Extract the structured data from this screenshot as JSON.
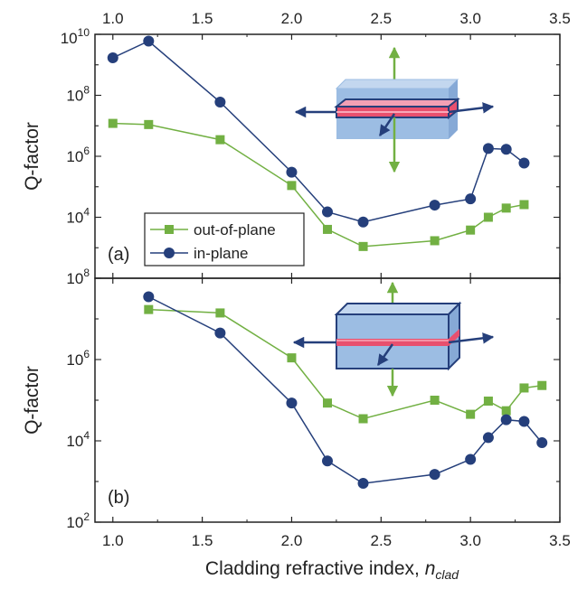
{
  "chart_data": [
    {
      "type": "line",
      "panel_label": "(a)",
      "ylabel": "Q-factor",
      "yscale": "log",
      "ylim_exp": [
        2,
        10
      ],
      "y_tick_exponents": [
        8,
        6,
        4
      ],
      "y_tick_top_exponent": 10,
      "bottom_edge_label_exponent": 8,
      "x": [
        1.0,
        1.2,
        1.6,
        2.0,
        2.2,
        2.4,
        2.8,
        3.0,
        3.1,
        3.2,
        3.3
      ],
      "series": [
        {
          "name": "out-of-plane",
          "color": "#72b043",
          "marker": "square",
          "values": [
            12000000,
            11000000,
            3500000,
            110000,
            4000,
            1100,
            1700,
            3800,
            10000,
            20000,
            26000
          ]
        },
        {
          "name": "in-plane",
          "color": "#253f7b",
          "marker": "circle",
          "values": [
            1700000000,
            6000000000,
            60000000,
            300000,
            15000,
            7000,
            25000,
            40000,
            1800000,
            1700000,
            600000
          ]
        }
      ],
      "legend": {
        "placement": "lower-left"
      }
    },
    {
      "type": "line",
      "panel_label": "(b)",
      "ylabel": "Q-factor",
      "yscale": "log",
      "ylim_exp": [
        2,
        8
      ],
      "y_tick_exponents": [
        8,
        6,
        4,
        2
      ],
      "series": [
        {
          "name": "out-of-plane",
          "color": "#72b043",
          "marker": "square",
          "x": [
            1.2,
            1.6,
            2.0,
            2.2,
            2.4,
            2.8,
            3.0,
            3.1,
            3.2,
            3.3,
            3.4
          ],
          "values": [
            17000000,
            14000000,
            1100000,
            85000,
            35000,
            100000,
            45000,
            95000,
            55000,
            200000,
            230000
          ]
        },
        {
          "name": "in-plane",
          "color": "#253f7b",
          "marker": "circle",
          "x": [
            1.2,
            1.6,
            2.0,
            2.2,
            2.4,
            2.8,
            3.0,
            3.1,
            3.2,
            3.3,
            3.4
          ],
          "values": [
            35000000,
            4500000,
            85000,
            3200,
            900,
            1500,
            3500,
            12000,
            33000,
            30000,
            9000
          ]
        }
      ]
    }
  ],
  "x_axis": {
    "label_main": "Cladding refractive index, ",
    "label_italic": "n",
    "label_sub": "clad",
    "xlim": [
      0.9,
      3.5
    ],
    "ticks": [
      "1.0",
      "1.5",
      "2.0",
      "2.5",
      "3.0",
      "3.5"
    ],
    "tick_values": [
      1.0,
      1.5,
      2.0,
      2.5,
      3.0,
      3.5
    ]
  },
  "legend_entries": [
    "out-of-plane",
    "in-plane"
  ],
  "colors": {
    "out_of_plane": "#72b043",
    "in_plane": "#253f7b",
    "slab_fill": "#9cbde3",
    "slab_edge": "#253f7b",
    "waveguide": "#e8506e"
  },
  "insets": [
    {
      "name": "thin-slab-inset",
      "panel": "(a)"
    },
    {
      "name": "thick-slab-inset",
      "panel": "(b)"
    }
  ]
}
